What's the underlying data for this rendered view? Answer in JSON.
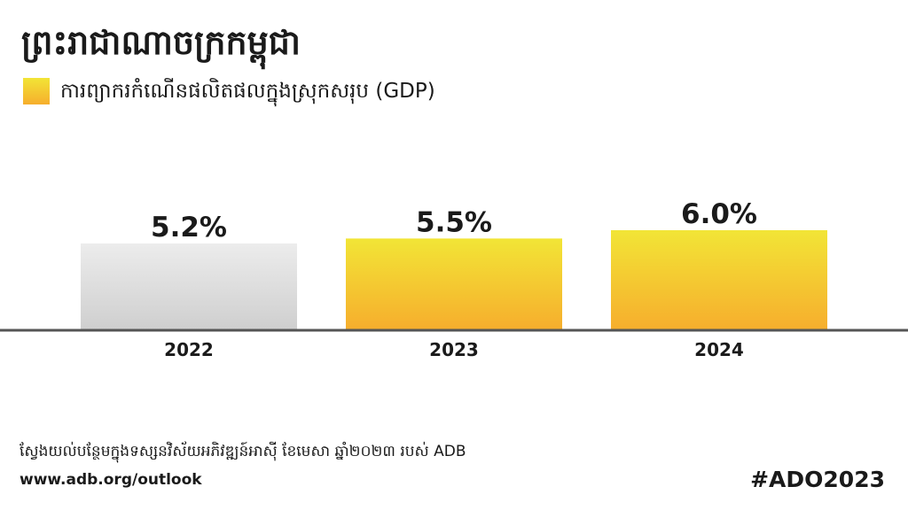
{
  "title": "ព្រះរាជាណាចក្រកម្ពុជា",
  "legend": {
    "label": "ការព្យាករកំណើនផលិតផលក្នុងស្រុកសរុប (GDP)"
  },
  "footer": {
    "source": "ស្វែងយល់បន្ថែមក្នុងទស្សនវិស័យអភិវឌ្ឍន៍អាស៊ី ខែមេសា ឆ្នាំ២០២៣ របស់ ADB",
    "url": "www.adb.org/outlook",
    "hashtag": "#ADO2023"
  },
  "chart_data": {
    "type": "bar",
    "categories": [
      "2022",
      "2023",
      "2024"
    ],
    "values": [
      5.2,
      5.5,
      6.0
    ],
    "value_labels": [
      "5.2%",
      "5.5%",
      "6.0%"
    ],
    "highlight": [
      false,
      true,
      true
    ],
    "grid": false,
    "colors": {
      "actual_top": "#ececec",
      "actual_bottom": "#cfcfcf",
      "forecast_top": "#f2e536",
      "forecast_bottom": "#f6ae2d",
      "axis": "#555555"
    }
  }
}
